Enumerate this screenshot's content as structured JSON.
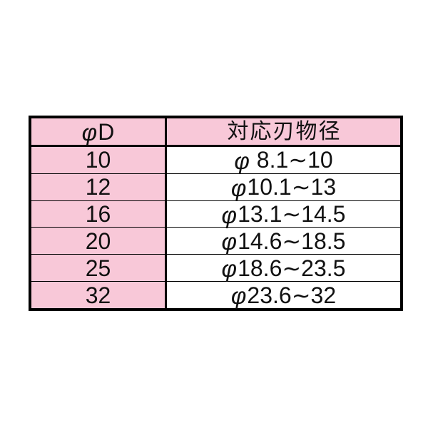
{
  "colors": {
    "pink": "#f8c8d8",
    "border": "#000000",
    "text": "#111111",
    "background": "#ffffff"
  },
  "table": {
    "header": {
      "d_phi": "φ",
      "d_label": "D",
      "range_label": "対応刃物径"
    },
    "rows": [
      {
        "d": "10",
        "phi": "φ",
        "range": " 8.1∼10"
      },
      {
        "d": "12",
        "phi": "φ",
        "range": "10.1∼13"
      },
      {
        "d": "16",
        "phi": "φ",
        "range": "13.1∼14.5"
      },
      {
        "d": "20",
        "phi": "φ",
        "range": "14.6∼18.5"
      },
      {
        "d": "25",
        "phi": "φ",
        "range": "18.6∼23.5"
      },
      {
        "d": "32",
        "phi": "φ",
        "range": "23.6∼32"
      }
    ]
  }
}
